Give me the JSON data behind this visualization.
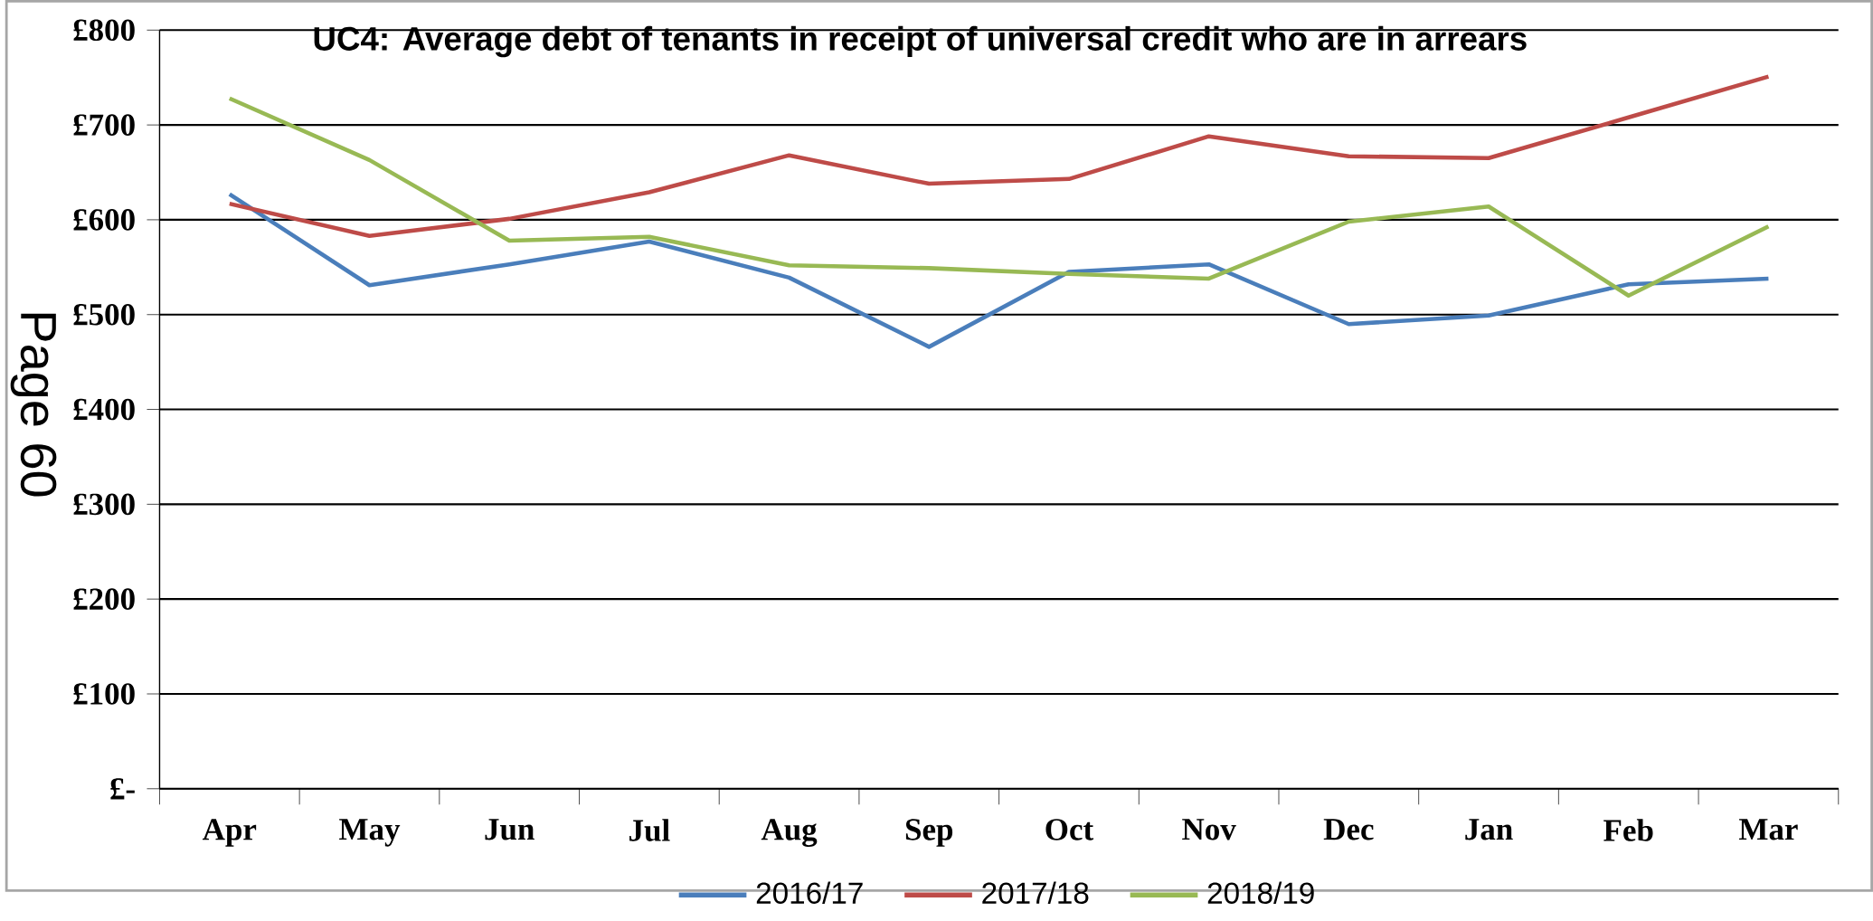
{
  "chart_data": {
    "type": "line",
    "title": "UC4: Average debt of tenants in receipt of universal credit who are in arrears",
    "categories": [
      "Apr",
      "May",
      "Jun",
      "Jul",
      "Aug",
      "Sep",
      "Oct",
      "Nov",
      "Dec",
      "Jan",
      "Feb",
      "Mar"
    ],
    "series": [
      {
        "name": "2016/17",
        "color": "#4a7ebb",
        "values": [
          627,
          531,
          553,
          577,
          539,
          466,
          545,
          553,
          490,
          499,
          532,
          538
        ]
      },
      {
        "name": "2017/18",
        "color": "#be4b48",
        "values": [
          617,
          583,
          601,
          629,
          668,
          638,
          643,
          688,
          667,
          665,
          708,
          751
        ]
      },
      {
        "name": "2018/19",
        "color": "#98b954",
        "values": [
          728,
          663,
          578,
          582,
          552,
          549,
          543,
          538,
          598,
          614,
          520,
          593
        ]
      }
    ],
    "ylim": [
      0,
      800
    ],
    "yticks": [
      {
        "value": 0,
        "label": "£-"
      },
      {
        "value": 100,
        "label": "£100"
      },
      {
        "value": 200,
        "label": "£200"
      },
      {
        "value": 300,
        "label": "£300"
      },
      {
        "value": 400,
        "label": "£400"
      },
      {
        "value": 500,
        "label": "£500"
      },
      {
        "value": 600,
        "label": "£600"
      },
      {
        "value": 700,
        "label": "£700"
      },
      {
        "value": 800,
        "label": "£800"
      }
    ],
    "grid": "y",
    "legend": "bottom",
    "marker": "none",
    "line_style": "solid",
    "annotations": [
      "Page 60"
    ]
  }
}
